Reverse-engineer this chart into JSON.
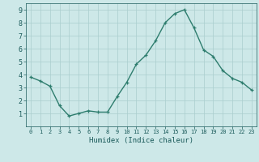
{
  "x": [
    0,
    1,
    2,
    3,
    4,
    5,
    6,
    7,
    8,
    9,
    10,
    11,
    12,
    13,
    14,
    15,
    16,
    17,
    18,
    19,
    20,
    21,
    22,
    23
  ],
  "y": [
    3.8,
    3.5,
    3.1,
    1.6,
    0.8,
    1.0,
    1.2,
    1.1,
    1.1,
    2.3,
    3.4,
    4.8,
    5.5,
    6.6,
    8.0,
    8.7,
    9.0,
    7.6,
    5.9,
    5.4,
    4.3,
    3.7,
    3.4,
    2.8
  ],
  "xlabel": "Humidex (Indice chaleur)",
  "ylim": [
    0,
    9.5
  ],
  "xlim": [
    -0.5,
    23.5
  ],
  "line_color": "#2e7d6e",
  "marker": "+",
  "bg_plot": "#cde8e8",
  "bg_fig": "#cde8e8",
  "grid_color": "#aacece",
  "tick_label_color": "#1a5a5a",
  "xlabel_color": "#1a5a5a",
  "yticks": [
    1,
    2,
    3,
    4,
    5,
    6,
    7,
    8,
    9
  ],
  "xticks": [
    0,
    1,
    2,
    3,
    4,
    5,
    6,
    7,
    8,
    9,
    10,
    11,
    12,
    13,
    14,
    15,
    16,
    17,
    18,
    19,
    20,
    21,
    22,
    23
  ]
}
